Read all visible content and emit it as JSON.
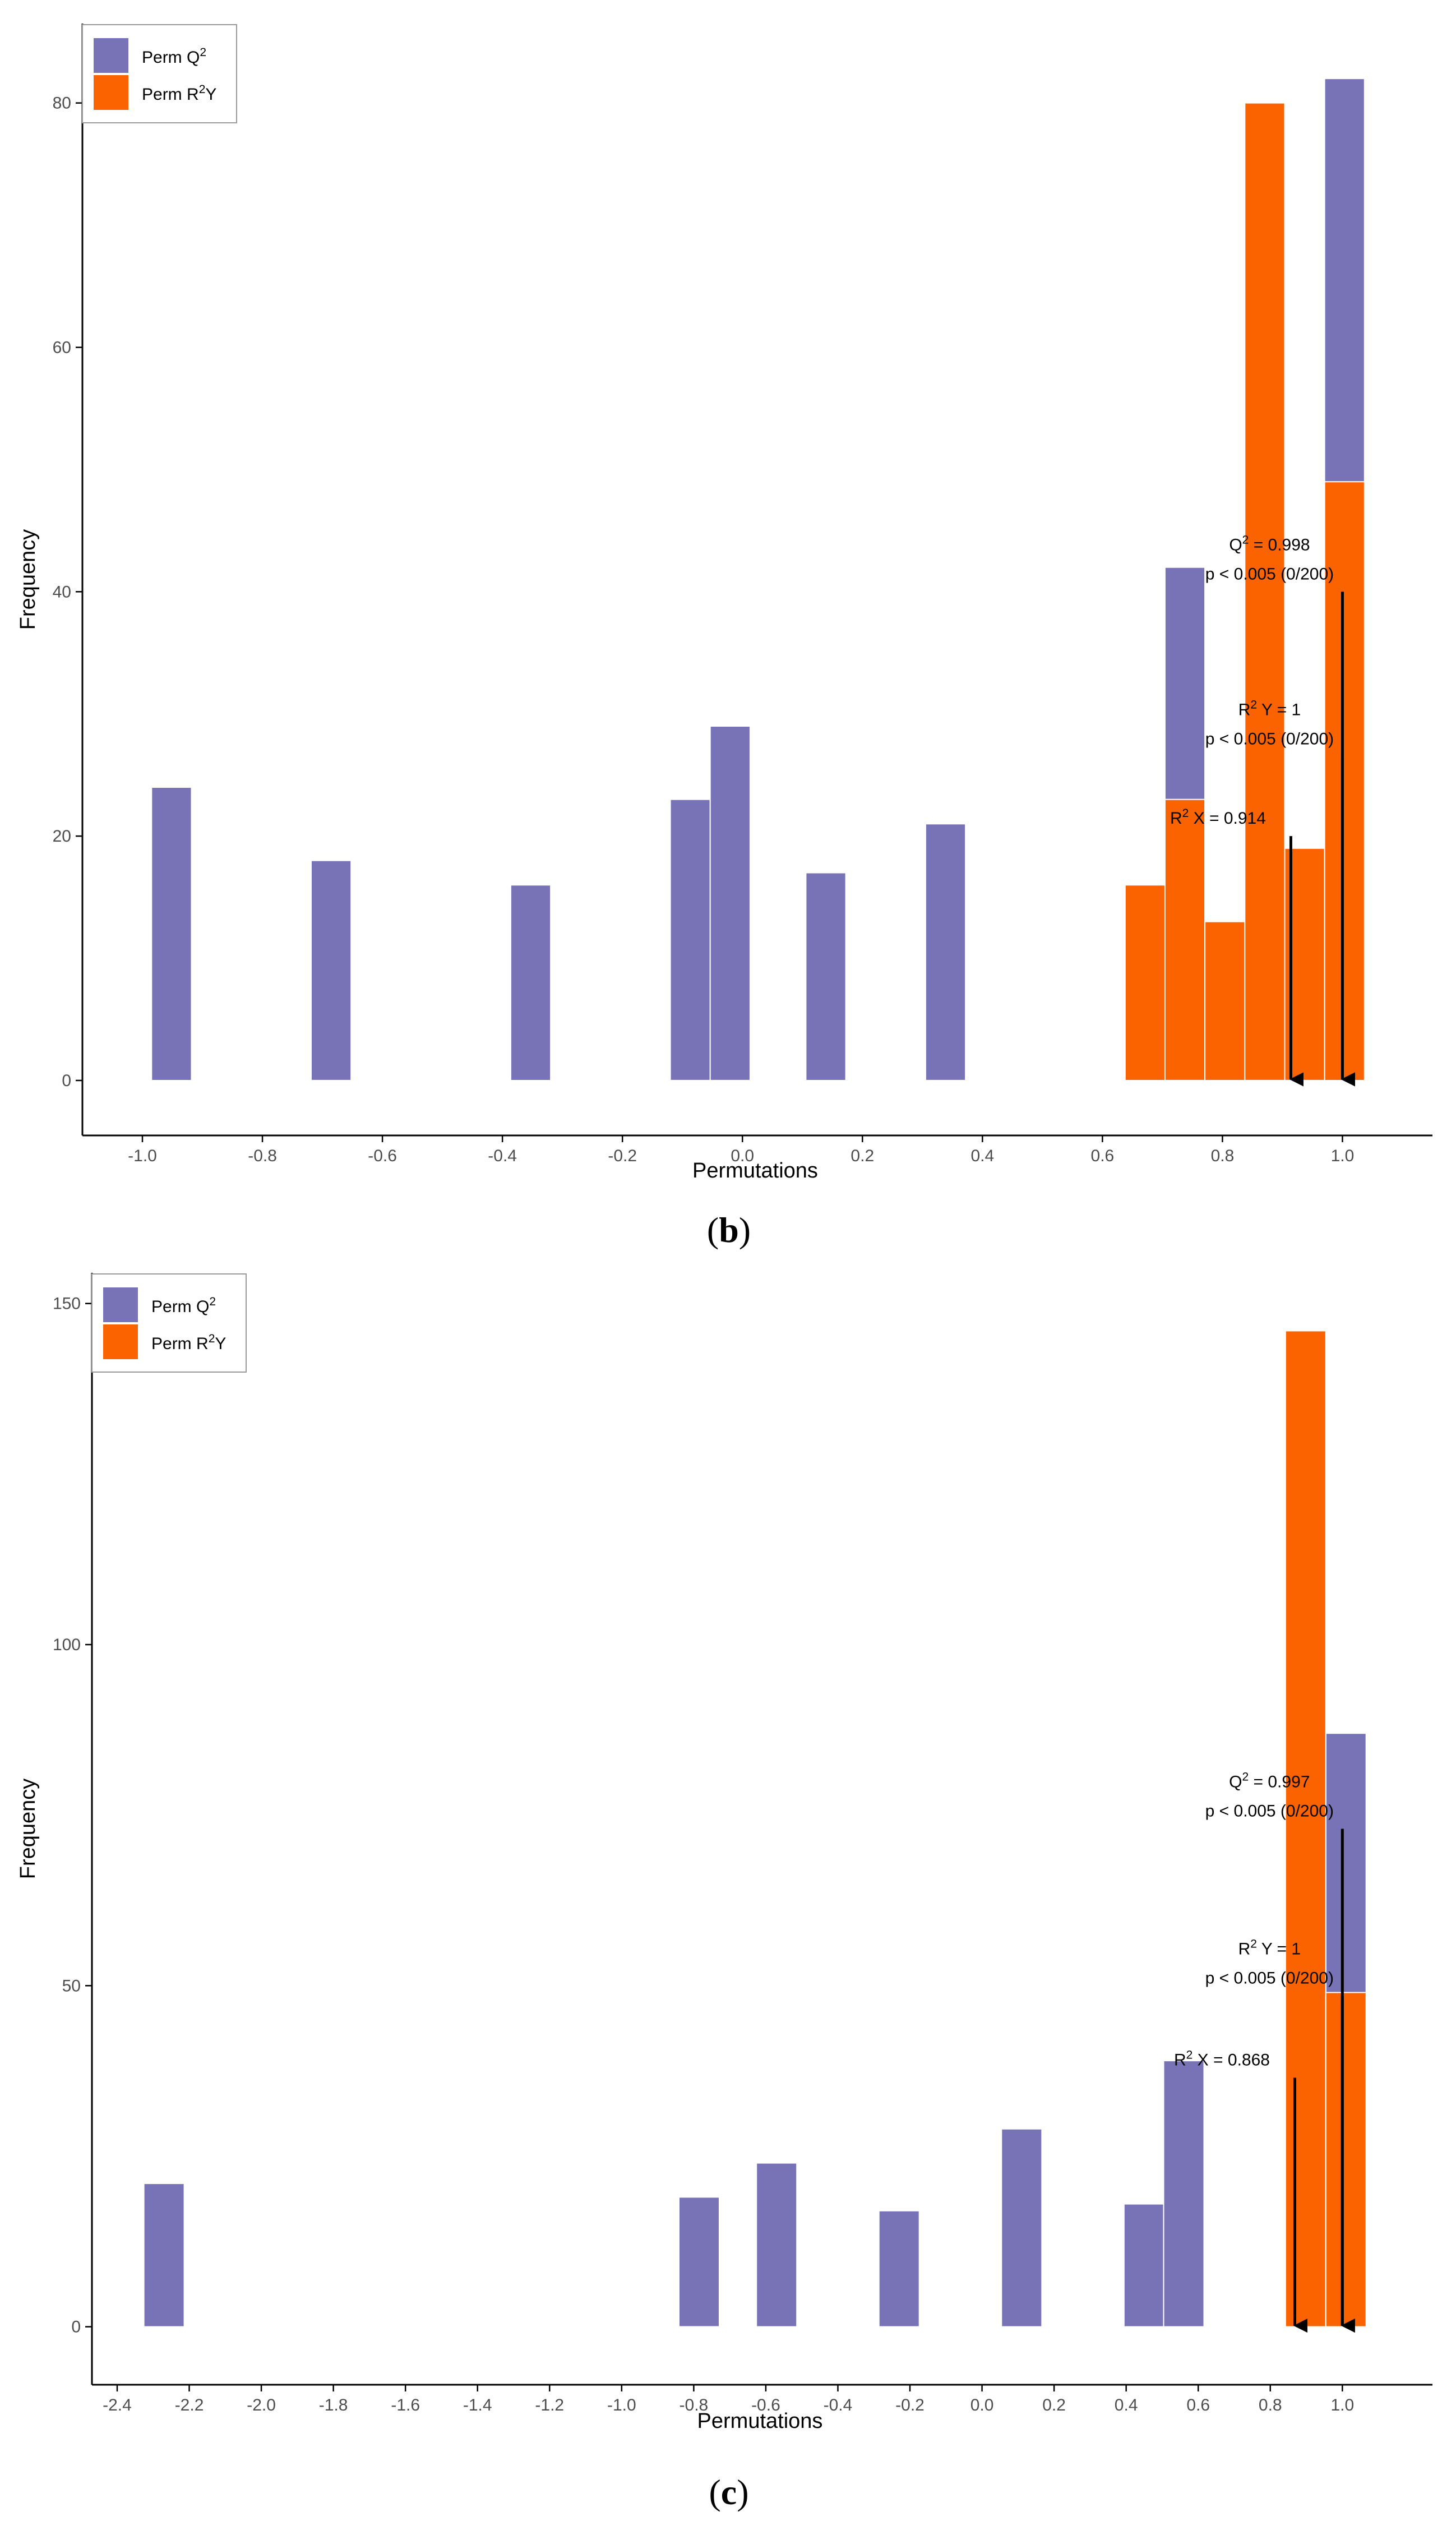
{
  "colors": {
    "q2": "#7873b7",
    "r2y": "#fb6200",
    "axis": "#000000",
    "tick_text": "#4d4d4d"
  },
  "chart_data": [
    {
      "type": "bar",
      "panel_label": "b",
      "xlabel": "Permutations",
      "ylabel": "Frequency",
      "xlim": [
        -1.1,
        1.15
      ],
      "ylim": [
        -4.5,
        86.5
      ],
      "xticks": [
        -1.0,
        -0.8,
        -0.6,
        -0.4,
        -0.2,
        0.0,
        0.2,
        0.4,
        0.6,
        0.8,
        1.0
      ],
      "xtick_labels": [
        "-1.0",
        "-0.8",
        "-0.6",
        "-0.4",
        "-0.2",
        "0.0",
        "0.2",
        "0.4",
        "0.6",
        "0.8",
        "1.0"
      ],
      "yticks": [
        0,
        20,
        40,
        60,
        80
      ],
      "ytick_labels": [
        "0",
        "20",
        "40",
        "60",
        "80"
      ],
      "bin_width": 0.0665,
      "legend": [
        {
          "key": "q2",
          "label": "Perm Q",
          "sup": "2",
          "after": ""
        },
        {
          "key": "r2y",
          "label": "Perm R",
          "sup": "2",
          "after": "Y"
        }
      ],
      "series": [
        {
          "key": "q2",
          "name": "Perm Q2",
          "bins": [
            {
              "x": -0.9515,
              "y": 24
            },
            {
              "x": -0.6855,
              "y": 18
            },
            {
              "x": -0.353,
              "y": 16
            },
            {
              "x": -0.087,
              "y": 23
            },
            {
              "x": -0.0205,
              "y": 29
            },
            {
              "x": 0.139,
              "y": 17
            },
            {
              "x": 0.3385,
              "y": 21
            },
            {
              "x": 0.7375,
              "y": 42
            },
            {
              "x": 1.0035,
              "y": 82
            }
          ]
        },
        {
          "key": "r2y",
          "name": "Perm R2Y",
          "bins": [
            {
              "x": 0.671,
              "y": 16
            },
            {
              "x": 0.7375,
              "y": 23
            },
            {
              "x": 0.804,
              "y": 13
            },
            {
              "x": 0.8705,
              "y": 80
            },
            {
              "x": 0.937,
              "y": 19
            },
            {
              "x": 1.0035,
              "y": 49
            }
          ]
        }
      ],
      "annotations": [
        {
          "name": "q2",
          "x": 1.0,
          "arrow_top": 40,
          "lines": [
            {
              "pre": "Q",
              "sup": "2",
              "post": " = 0.998"
            },
            {
              "text": "p < 0.005 (0/200)"
            }
          ]
        },
        {
          "name": "r2y",
          "x": 1.0,
          "arrow_top": 26.5,
          "lines": [
            {
              "pre": "R",
              "sup": "2",
              "post": " Y = 1"
            },
            {
              "text": "p < 0.005 (0/200)"
            }
          ]
        },
        {
          "name": "r2x",
          "x": 0.914,
          "arrow_top": 20,
          "lines": [
            {
              "pre": "R",
              "sup": "2",
              "post": " X = 0.914"
            }
          ]
        }
      ]
    },
    {
      "type": "bar",
      "panel_label": "c",
      "xlabel": "Permutations",
      "ylabel": "Frequency",
      "xlim": [
        -2.47,
        1.25
      ],
      "ylim": [
        -8.5,
        154.5
      ],
      "xticks": [
        -2.4,
        -2.2,
        -2.0,
        -1.8,
        -1.6,
        -1.4,
        -1.2,
        -1.0,
        -0.8,
        -0.6,
        -0.4,
        -0.2,
        0.0,
        0.2,
        0.4,
        0.6,
        0.8,
        1.0
      ],
      "xtick_labels": [
        "-2.4",
        "-2.2",
        "-2.0",
        "-1.8",
        "-1.6",
        "-1.4",
        "-1.2",
        "-1.0",
        "-0.8",
        "-0.6",
        "-0.4",
        "-0.2",
        "0.0",
        "0.2",
        "0.4",
        "0.6",
        "0.8",
        "1.0"
      ],
      "yticks": [
        0,
        50,
        100,
        150
      ],
      "ytick_labels": [
        "0",
        "50",
        "100",
        "150"
      ],
      "bin_width": 0.112,
      "legend": [
        {
          "key": "q2",
          "label": "Perm Q",
          "sup": "2",
          "after": ""
        },
        {
          "key": "r2y",
          "label": "Perm R",
          "sup": "2",
          "after": "Y"
        }
      ],
      "series": [
        {
          "key": "q2",
          "name": "Perm Q2",
          "bins": [
            {
              "x": -2.27,
              "y": 21
            },
            {
              "x": -0.785,
              "y": 19
            },
            {
              "x": -0.57,
              "y": 24
            },
            {
              "x": -0.23,
              "y": 17
            },
            {
              "x": 0.11,
              "y": 29
            },
            {
              "x": 0.45,
              "y": 18
            },
            {
              "x": 0.56,
              "y": 39
            },
            {
              "x": 1.01,
              "y": 87
            }
          ]
        },
        {
          "key": "r2y",
          "name": "Perm R2Y",
          "bins": [
            {
              "x": 0.898,
              "y": 146
            },
            {
              "x": 1.01,
              "y": 49
            }
          ]
        }
      ],
      "annotations": [
        {
          "name": "q2",
          "x": 1.0,
          "arrow_top": 73,
          "lines": [
            {
              "pre": "Q",
              "sup": "2",
              "post": " = 0.997"
            },
            {
              "text": "p < 0.005 (0/200)"
            }
          ]
        },
        {
          "name": "r2y",
          "x": 1.0,
          "arrow_top": 48.5,
          "lines": [
            {
              "pre": "R",
              "sup": "2",
              "post": " Y = 1"
            },
            {
              "text": "p < 0.005 (0/200)"
            }
          ]
        },
        {
          "name": "r2x",
          "x": 0.868,
          "arrow_top": 36.5,
          "lines": [
            {
              "pre": "R",
              "sup": "2",
              "post": " X = 0.868"
            }
          ]
        }
      ]
    }
  ]
}
